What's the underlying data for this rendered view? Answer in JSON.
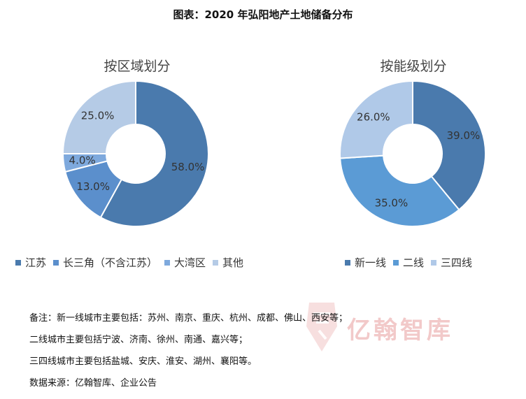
{
  "title": "图表：2020 年弘阳地产土地储备分布",
  "charts": [
    {
      "subtitle": "按区域划分",
      "chart_data": {
        "type": "pie",
        "donut": true,
        "categories": [
          "江苏",
          "长三角（不含江苏）",
          "大湾区",
          "其他"
        ],
        "values": [
          58.0,
          13.0,
          4.0,
          25.0
        ],
        "labels": [
          "58.0%",
          "13.0%",
          "4.0%",
          "25.0%"
        ],
        "colors": [
          "#4a7aad",
          "#5b8fcc",
          "#7ea9dd",
          "#b5cbe6"
        ],
        "legend_position": "bottom"
      }
    },
    {
      "subtitle": "按能级划分",
      "chart_data": {
        "type": "pie",
        "donut": true,
        "categories": [
          "新一线",
          "二线",
          "三四线"
        ],
        "values": [
          39.0,
          35.0,
          26.0
        ],
        "labels": [
          "39.0%",
          "35.0%",
          "26.0%"
        ],
        "colors": [
          "#4a7aad",
          "#5b9bd5",
          "#b0c9e8"
        ],
        "legend_position": "bottom"
      }
    }
  ],
  "notes": [
    "备注：新一线城市主要包括：苏州、南京、重庆、杭州、成都、佛山、西安等；",
    "二线城市主要包括宁波、济南、徐州、南通、嘉兴等；",
    "三四线城市主要包括盐城、安庆、淮安、湖州、襄阳等。",
    "数据来源：亿翰智库、企业公告"
  ],
  "watermark": "亿翰智库"
}
